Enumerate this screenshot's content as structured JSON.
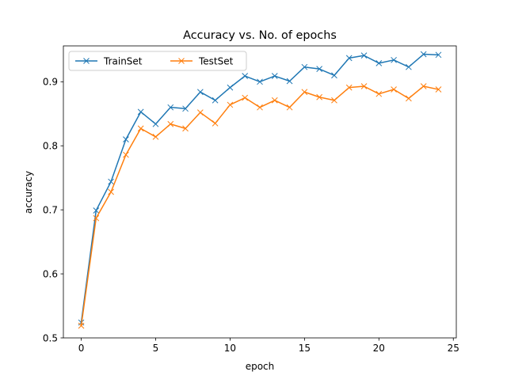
{
  "chart_data": {
    "type": "line",
    "title": "Accuracy vs. No. of epochs",
    "xlabel": "epoch",
    "ylabel": "accuracy",
    "xlim": [
      -1.2,
      25.2
    ],
    "ylim": [
      0.5,
      0.956
    ],
    "xticks": [
      0,
      5,
      10,
      15,
      20,
      25
    ],
    "yticks": [
      0.5,
      0.6,
      0.7,
      0.8,
      0.9
    ],
    "grid": false,
    "legend_placement": "top-left",
    "legend_columns": 2,
    "marker": "x",
    "x": [
      0,
      1,
      2,
      3,
      4,
      5,
      6,
      7,
      8,
      9,
      10,
      11,
      12,
      13,
      14,
      15,
      16,
      17,
      18,
      19,
      20,
      21,
      22,
      23,
      24
    ],
    "series": [
      {
        "name": "TrainSet",
        "color": "#1f77b4",
        "values": [
          0.524,
          0.699,
          0.744,
          0.81,
          0.853,
          0.834,
          0.86,
          0.858,
          0.884,
          0.871,
          0.891,
          0.909,
          0.9,
          0.909,
          0.901,
          0.923,
          0.92,
          0.91,
          0.937,
          0.941,
          0.929,
          0.934,
          0.923,
          0.943,
          0.942
        ]
      },
      {
        "name": "TestSet",
        "color": "#ff7f0e",
        "values": [
          0.519,
          0.687,
          0.728,
          0.786,
          0.827,
          0.814,
          0.834,
          0.827,
          0.852,
          0.835,
          0.864,
          0.875,
          0.86,
          0.871,
          0.86,
          0.884,
          0.876,
          0.871,
          0.891,
          0.893,
          0.881,
          0.888,
          0.874,
          0.893,
          0.888
        ]
      }
    ]
  }
}
